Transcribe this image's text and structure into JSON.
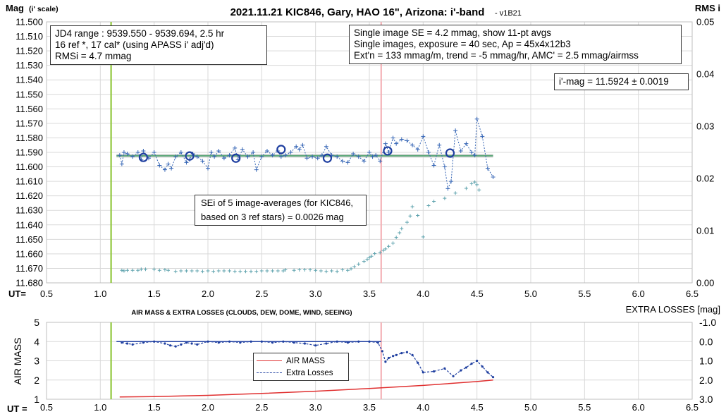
{
  "chart_data": [
    {
      "type": "scatter",
      "title": "2021.11.21 KIC846, Gary, HAO 16\", Arizona: i'-band",
      "title_suffix": "- v1B21",
      "ylabel": "Mag",
      "ylabel_suffix": "(i' scale)",
      "y2label": "RMS i",
      "xlabel": "UT=",
      "xlim": [
        0.5,
        6.5
      ],
      "xticks": [
        0.5,
        1.0,
        1.5,
        2.0,
        2.5,
        3.0,
        3.5,
        4.0,
        4.5,
        5.0,
        5.5,
        6.0,
        6.5
      ],
      "xtick_labels": [
        "0.5",
        "1.0",
        "1.5",
        "2.0",
        "2.5",
        "3.0",
        "3.5",
        "4.0",
        "4.5",
        "5.0",
        "5.5",
        "6.0",
        "6.5"
      ],
      "ylim": [
        11.68,
        11.5
      ],
      "yticks": [
        11.5,
        11.51,
        11.52,
        11.53,
        11.54,
        11.55,
        11.56,
        11.57,
        11.58,
        11.59,
        11.6,
        11.61,
        11.62,
        11.63,
        11.64,
        11.65,
        11.66,
        11.67,
        11.68
      ],
      "ytick_labels": [
        "11.500",
        "11.510",
        "11.520",
        "11.530",
        "11.540",
        "11.550",
        "11.560",
        "11.570",
        "11.580",
        "11.590",
        "11.600",
        "11.610",
        "11.620",
        "11.630",
        "11.640",
        "11.650",
        "11.660",
        "11.670",
        "11.680"
      ],
      "y2lim": [
        0.0,
        0.05
      ],
      "y2ticks": [
        0,
        0.01,
        0.02,
        0.03,
        0.04,
        0.05
      ],
      "y2tick_labels": [
        "0.00",
        "0.01",
        "0.02",
        "0.03",
        "0.04",
        "0.05"
      ],
      "grid": true,
      "vlines": [
        {
          "x": 1.1,
          "color": "#92c83e"
        },
        {
          "x": 3.61,
          "color": "#f4b3b8"
        }
      ],
      "fit_line": {
        "x": [
          1.15,
          4.65
        ],
        "y": [
          11.5924,
          11.5924
        ],
        "color": "#5aa878"
      },
      "annotations": {
        "info_left": [
          "JD4 range : 9539.550 - 9539.694, 2.5  hr",
          "16 ref *, 17 cal* (using APASS i' adj'd)",
          "RMSi = 4.7 mmag"
        ],
        "info_right": [
          "Single image SE = 4.2 mmag, show 11-pt avgs",
          "Single images, exposure = 40 sec, Ap = 45x4x12b3",
          "Ext'n = 133 mmag/m, trend = -5 mmag/hr, AMC' = 2.5 mmag/airmss"
        ],
        "result": "i'-mag = 11.5924 ± 0.0019",
        "sei": [
          "SEi of 5 image-averages (for KIC846,",
          "based on 3 ref stars) = 0.0026 mag"
        ]
      },
      "series": [
        {
          "kind": "single_images_mag",
          "color": "#3565b5",
          "x": [
            1.18,
            1.2,
            1.22,
            1.25,
            1.3,
            1.35,
            1.38,
            1.4,
            1.45,
            1.5,
            1.55,
            1.6,
            1.63,
            1.66,
            1.7,
            1.75,
            1.8,
            1.83,
            1.86,
            1.9,
            1.95,
            2.0,
            2.03,
            2.06,
            2.1,
            2.15,
            2.2,
            2.25,
            2.28,
            2.32,
            2.37,
            2.42,
            2.45,
            2.5,
            2.55,
            2.6,
            2.65,
            2.68,
            2.72,
            2.77,
            2.82,
            2.85,
            2.88,
            2.92,
            2.97,
            3.02,
            3.06,
            3.1,
            3.15,
            3.2,
            3.25,
            3.3,
            3.35,
            3.4,
            3.45,
            3.5,
            3.53,
            3.56,
            3.6,
            3.65,
            3.68,
            3.72,
            3.75,
            3.8,
            3.85,
            3.9,
            3.95,
            4.0,
            4.05,
            4.1,
            4.15,
            4.2,
            4.23,
            4.26,
            4.3,
            4.35,
            4.4,
            4.45,
            4.48,
            4.5,
            4.55,
            4.6,
            4.65
          ],
          "y": [
            11.592,
            11.598,
            11.59,
            11.591,
            11.593,
            11.59,
            11.595,
            11.589,
            11.594,
            11.59,
            11.599,
            11.602,
            11.598,
            11.601,
            11.593,
            11.59,
            11.597,
            11.595,
            11.591,
            11.593,
            11.596,
            11.601,
            11.59,
            11.593,
            11.589,
            11.594,
            11.592,
            11.587,
            11.595,
            11.588,
            11.593,
            11.59,
            11.602,
            11.593,
            11.589,
            11.592,
            11.589,
            11.593,
            11.592,
            11.59,
            11.586,
            11.588,
            11.585,
            11.594,
            11.593,
            11.594,
            11.592,
            11.586,
            11.592,
            11.593,
            11.596,
            11.597,
            11.591,
            11.593,
            11.596,
            11.59,
            11.593,
            11.592,
            11.596,
            11.584,
            11.59,
            11.58,
            11.584,
            11.581,
            11.582,
            11.585,
            11.588,
            11.579,
            11.59,
            11.599,
            11.585,
            11.6,
            11.615,
            11.61,
            11.575,
            11.589,
            11.584,
            11.59,
            11.592,
            11.567,
            11.579,
            11.601,
            11.607
          ]
        },
        {
          "kind": "11pt_averages",
          "color": "#1f3fa0",
          "x": [
            1.4,
            1.83,
            2.26,
            2.68,
            3.11,
            3.67,
            4.25
          ],
          "y": [
            11.5935,
            11.5925,
            11.594,
            11.588,
            11.594,
            11.589,
            11.5905
          ]
        },
        {
          "kind": "rms",
          "axis": "y2",
          "color": "#5fa3ae",
          "x": [
            1.2,
            1.22,
            1.25,
            1.3,
            1.35,
            1.38,
            1.42,
            1.5,
            1.55,
            1.6,
            1.63,
            1.7,
            1.75,
            1.8,
            1.85,
            1.9,
            1.95,
            2.0,
            2.05,
            2.1,
            2.15,
            2.2,
            2.25,
            2.3,
            2.35,
            2.4,
            2.45,
            2.5,
            2.55,
            2.6,
            2.65,
            2.7,
            2.72,
            2.8,
            2.85,
            2.9,
            2.95,
            3.0,
            3.05,
            3.1,
            3.15,
            3.2,
            3.25,
            3.3,
            3.33,
            3.36,
            3.4,
            3.45,
            3.48,
            3.5,
            3.52,
            3.55,
            3.6,
            3.63,
            3.65,
            3.68,
            3.72,
            3.75,
            3.78,
            3.8,
            3.85,
            3.88,
            3.9,
            3.95,
            4.0,
            4.05,
            4.1,
            4.2,
            4.3,
            4.4,
            4.45,
            4.48,
            4.5,
            4.52
          ],
          "y": [
            0.0024,
            0.0023,
            0.0024,
            0.0024,
            0.0024,
            0.0026,
            0.0026,
            0.0026,
            0.0024,
            0.0025,
            0.0024,
            0.0022,
            0.0023,
            0.0023,
            0.0023,
            0.0023,
            0.0022,
            0.0023,
            0.0022,
            0.0023,
            0.0023,
            0.0023,
            0.0022,
            0.0022,
            0.0022,
            0.0022,
            0.0022,
            0.0023,
            0.0023,
            0.0023,
            0.0023,
            0.0023,
            0.0025,
            0.0024,
            0.0025,
            0.0025,
            0.0025,
            0.0024,
            0.0023,
            0.0022,
            0.0023,
            0.0022,
            0.0025,
            0.0024,
            0.0027,
            0.0031,
            0.0036,
            0.0041,
            0.0045,
            0.0048,
            0.0051,
            0.0056,
            0.0058,
            0.0062,
            0.0065,
            0.007,
            0.0076,
            0.0087,
            0.0096,
            0.0104,
            0.0116,
            0.0128,
            0.0146,
            0.0129,
            0.0088,
            0.0148,
            0.0156,
            0.0162,
            0.0172,
            0.0181,
            0.019,
            0.0193,
            0.0188,
            0.0178
          ]
        }
      ]
    },
    {
      "type": "line",
      "title": "AIR MASS & EXTRA LOSSES (CLOUDS, DEW, DOME, WIND, SEEING)",
      "ylabel": "AIR MASS",
      "y2label": "EXTRA LOSSES [mag]",
      "xlabel": "UT =",
      "xlim": [
        0.5,
        6.5
      ],
      "xticks": [
        0.5,
        1.0,
        1.5,
        2.0,
        2.5,
        3.0,
        3.5,
        4.0,
        4.5,
        5.0,
        5.5,
        6.0,
        6.5
      ],
      "xtick_labels": [
        "0.5",
        "1.0",
        "1.5",
        "2.0",
        "2.5",
        "3.0",
        "3.5",
        "4.0",
        "4.5",
        "5.0",
        "5.5",
        "6.0",
        "6.5"
      ],
      "ylim": [
        1,
        5
      ],
      "yticks": [
        1,
        2,
        3,
        4,
        5
      ],
      "ytick_labels": [
        "1",
        "2",
        "3",
        "4",
        "5"
      ],
      "y2lim": [
        3.0,
        -1.0
      ],
      "y2ticks": [
        -1.0,
        0.0,
        1.0,
        2.0,
        3.0
      ],
      "y2tick_labels": [
        "-1.0",
        "0.0",
        "1.0",
        "2.0",
        "3.0"
      ],
      "grid": true,
      "legend_position": "center",
      "vlines": [
        {
          "x": 1.1,
          "color": "#92c83e"
        },
        {
          "x": 3.61,
          "color": "#f4b3b8"
        }
      ],
      "reference_line": {
        "x": [
          1.15,
          3.61
        ],
        "y2": [
          0.0,
          0.0
        ],
        "color": "#1f3fa0"
      },
      "series": [
        {
          "name": "AIR MASS",
          "color": "#e03030",
          "x": [
            1.18,
            1.5,
            2.0,
            2.5,
            3.0,
            3.5,
            4.0,
            4.5,
            4.65
          ],
          "y": [
            1.12,
            1.14,
            1.2,
            1.3,
            1.42,
            1.56,
            1.72,
            1.92,
            2.0
          ]
        },
        {
          "name": "Extra Losses",
          "axis": "y2",
          "color": "#1f3fa0",
          "x": [
            1.2,
            1.25,
            1.3,
            1.4,
            1.5,
            1.6,
            1.65,
            1.7,
            1.75,
            1.8,
            1.85,
            1.9,
            2.0,
            2.1,
            2.2,
            2.3,
            2.4,
            2.5,
            2.6,
            2.7,
            2.8,
            2.9,
            3.0,
            3.1,
            3.2,
            3.3,
            3.4,
            3.5,
            3.58,
            3.62,
            3.65,
            3.68,
            3.72,
            3.75,
            3.8,
            3.85,
            3.9,
            3.95,
            4.0,
            4.1,
            4.2,
            4.28,
            4.35,
            4.4,
            4.45,
            4.5,
            4.55,
            4.6,
            4.65
          ],
          "y": [
            0.05,
            0.1,
            0.15,
            0.05,
            0.0,
            0.1,
            0.2,
            0.25,
            0.15,
            0.05,
            0.1,
            0.15,
            0.0,
            0.05,
            0.0,
            0.05,
            0.0,
            0.0,
            0.05,
            0.0,
            0.05,
            0.1,
            0.2,
            0.1,
            0.0,
            0.05,
            0.0,
            0.0,
            0.05,
            0.5,
            1.05,
            0.85,
            0.75,
            0.7,
            0.6,
            0.55,
            0.7,
            1.1,
            1.6,
            1.55,
            1.4,
            1.8,
            1.5,
            1.35,
            1.15,
            1.0,
            1.3,
            1.6,
            1.85
          ]
        }
      ]
    }
  ]
}
